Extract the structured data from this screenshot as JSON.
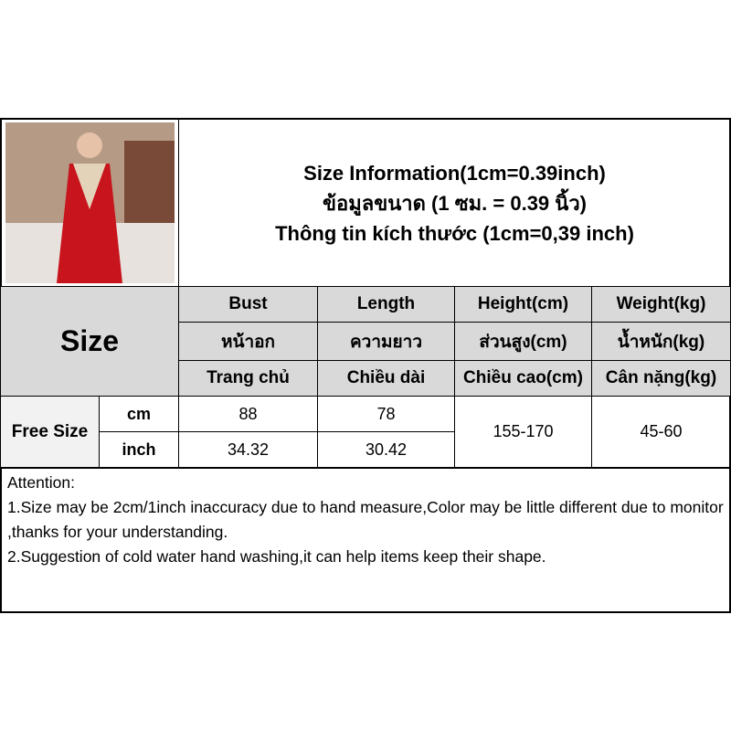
{
  "header": {
    "title_lines": [
      "Size Information(1cm=0.39inch)",
      "ข้อมูลขนาด (1 ซม. = 0.39 นิ้ว)",
      "Thông tin kích thước (1cm=0,39 inch)"
    ]
  },
  "table": {
    "size_label": "Size",
    "columns": [
      [
        "Bust",
        "หน้าอก",
        "Trang chủ"
      ],
      [
        "Length",
        "ความยาว",
        "Chiều dài"
      ],
      [
        "Height(cm)",
        "ส่วนสูง(cm)",
        "Chiều cao(cm)"
      ],
      [
        "Weight(kg)",
        "น้ำหนัก(kg)",
        "Cân nặng(kg)"
      ]
    ],
    "row_label": "Free Size",
    "units": [
      "cm",
      "inch"
    ],
    "rows": [
      [
        "88",
        "78"
      ],
      [
        "34.32",
        "30.42"
      ]
    ],
    "height": "155-170",
    "weight": "45-60"
  },
  "attention": [
    "Attention:",
    "1.Size may be 2cm/1inch inaccuracy due to hand measure,Color may be little different due to monitor ,thanks for your understanding.",
    "2.Suggestion of cold water hand washing,it can help items keep their shape."
  ]
}
